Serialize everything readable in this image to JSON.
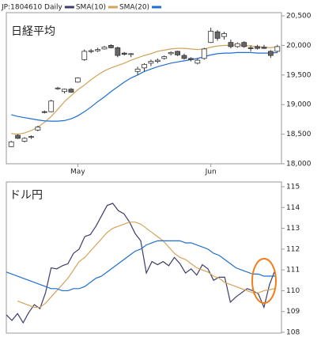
{
  "chart_data": [
    {
      "type": "candlestick",
      "title": "日経平均",
      "name": "JP:1804610 Daily",
      "color": "#3d3d6b",
      "up_color": "#ffffff",
      "down_color": "#666666",
      "categories": [
        null,
        null,
        null,
        null,
        null,
        null,
        null,
        null,
        null,
        null,
        "May",
        null,
        null,
        null,
        null,
        null,
        null,
        null,
        null,
        null,
        null,
        null,
        null,
        null,
        null,
        null,
        null,
        null,
        null,
        null,
        "Jun",
        null,
        null,
        null,
        null,
        null,
        null,
        null,
        null,
        null,
        null
      ],
      "open": [
        18290,
        18480,
        18380,
        18450,
        18570,
        18880,
        18880,
        19270,
        19220,
        19260,
        19380,
        19760,
        19900,
        19910,
        19940,
        20000,
        19960,
        19870,
        19850,
        19560,
        19620,
        19700,
        19730,
        19780,
        19860,
        19900,
        19830,
        19780,
        19700,
        19780,
        20050,
        20230,
        20150,
        20050,
        19980,
        20050,
        19960,
        19980,
        19970,
        19900,
        19900
      ],
      "high": [
        18390,
        18500,
        18450,
        18480,
        18640,
        18900,
        19080,
        19300,
        19270,
        19280,
        19460,
        19930,
        19940,
        19960,
        19990,
        20020,
        19980,
        19890,
        19870,
        19640,
        19700,
        19760,
        19780,
        19830,
        19900,
        19910,
        19860,
        19800,
        19780,
        19960,
        20300,
        20260,
        20230,
        20100,
        20050,
        20070,
        20000,
        20010,
        20010,
        19920,
        20010
      ],
      "low": [
        18280,
        18420,
        18360,
        18420,
        18550,
        18850,
        18870,
        19250,
        19190,
        19200,
        19370,
        19740,
        19870,
        19890,
        19930,
        19950,
        19800,
        19830,
        19800,
        19500,
        19560,
        19650,
        19700,
        19760,
        19830,
        19820,
        19760,
        19730,
        19680,
        19760,
        20040,
        20080,
        20100,
        19950,
        19960,
        19960,
        19900,
        19930,
        19940,
        19790,
        19880
      ],
      "close": [
        18370,
        18430,
        18430,
        18460,
        18620,
        18870,
        19060,
        19280,
        19260,
        19210,
        19450,
        19900,
        19910,
        19930,
        19970,
        19960,
        19830,
        19850,
        19860,
        19600,
        19680,
        19730,
        19750,
        19810,
        19880,
        19840,
        19780,
        19760,
        19750,
        19940,
        20240,
        20120,
        20200,
        19980,
        20030,
        19980,
        19950,
        19950,
        19950,
        19830,
        19980
      ],
      "series": [
        {
          "name": "SMA(10)",
          "color": "#d4a35a",
          "values": [
            18510,
            18500,
            18520,
            18560,
            18620,
            18700,
            18800,
            18920,
            19050,
            19150,
            19250,
            19330,
            19420,
            19500,
            19570,
            19620,
            19660,
            19700,
            19750,
            19790,
            19830,
            19860,
            19900,
            19920,
            19940,
            19950,
            19950,
            19940,
            19930,
            19940,
            19970,
            19990,
            20000,
            20000,
            20010,
            20000,
            19990,
            19980,
            19970,
            19960,
            19980
          ]
        },
        {
          "name": "SMA(20)",
          "color": "#1f6fd1",
          "values": [
            18830,
            18800,
            18780,
            18760,
            18740,
            18725,
            18720,
            18720,
            18730,
            18760,
            18810,
            18880,
            18960,
            19050,
            19130,
            19220,
            19300,
            19380,
            19450,
            19500,
            19560,
            19600,
            19640,
            19670,
            19700,
            19720,
            19740,
            19760,
            19780,
            19810,
            19840,
            19860,
            19870,
            19870,
            19880,
            19880,
            19880,
            19870,
            19870,
            19870,
            19880
          ]
        }
      ],
      "ylim": [
        18000,
        20500
      ],
      "yticks": [
        {
          "value": 18000,
          "label": "18,000"
        },
        {
          "value": 18500,
          "label": "18,500"
        },
        {
          "value": 19000,
          "label": "19,000"
        },
        {
          "value": 19500,
          "label": "19,500"
        },
        {
          "value": 20000,
          "label": "20,000"
        },
        {
          "value": 20500,
          "label": "20,500"
        }
      ]
    },
    {
      "type": "line",
      "title": "ドル円",
      "series": [
        {
          "color": "#3d3d6b",
          "values": [
            108.84,
            108.57,
            108.9,
            108.46,
            108.95,
            109.33,
            109.14,
            109.9,
            111.1,
            111.05,
            111.2,
            111.3,
            111.8,
            112.0,
            112.6,
            112.7,
            113.1,
            113.6,
            114.1,
            114.2,
            113.85,
            113.7,
            113.3,
            112.75,
            112.4,
            110.85,
            111.4,
            111.25,
            111.4,
            111.2,
            111.6,
            111.3,
            110.85,
            111.05,
            110.75,
            111.25,
            111.05,
            110.5,
            110.65,
            110.65,
            109.45,
            109.7,
            109.9,
            110.1,
            110.0,
            109.85,
            109.2,
            110.3,
            111.0
          ]
        },
        {
          "color": "#d4a35a",
          "values": [
            null,
            null,
            109.5,
            109.4,
            109.3,
            109.2,
            109.2,
            109.4,
            109.7,
            110.0,
            110.3,
            110.6,
            111.0,
            111.4,
            111.6,
            111.9,
            112.2,
            112.5,
            112.8,
            113.0,
            113.1,
            113.2,
            113.3,
            113.3,
            113.2,
            113.0,
            112.8,
            112.6,
            112.4,
            112.1,
            111.8,
            111.6,
            111.5,
            111.3,
            111.1,
            111.0,
            110.9,
            110.7,
            110.6,
            110.4,
            110.3,
            110.2,
            110.1,
            110.0,
            109.9,
            109.9,
            110.0,
            110.05,
            110.1
          ]
        },
        {
          "color": "#1f6fd1",
          "values": [
            110.9,
            110.8,
            110.7,
            110.6,
            110.5,
            110.4,
            110.3,
            110.2,
            110.1,
            110.1,
            110.0,
            110.0,
            110.1,
            110.1,
            110.2,
            110.4,
            110.6,
            110.7,
            110.9,
            111.1,
            111.3,
            111.5,
            111.7,
            111.9,
            112.0,
            112.2,
            112.3,
            112.4,
            112.4,
            112.4,
            112.4,
            112.4,
            112.3,
            112.3,
            112.2,
            112.1,
            112.0,
            111.8,
            111.7,
            111.5,
            111.3,
            111.1,
            111.0,
            110.9,
            110.8,
            110.8,
            110.7,
            110.7,
            110.7
          ]
        }
      ],
      "ylim": [
        108,
        115
      ],
      "yticks": [
        108,
        109,
        110,
        111,
        112,
        113,
        114,
        115
      ]
    }
  ]
}
